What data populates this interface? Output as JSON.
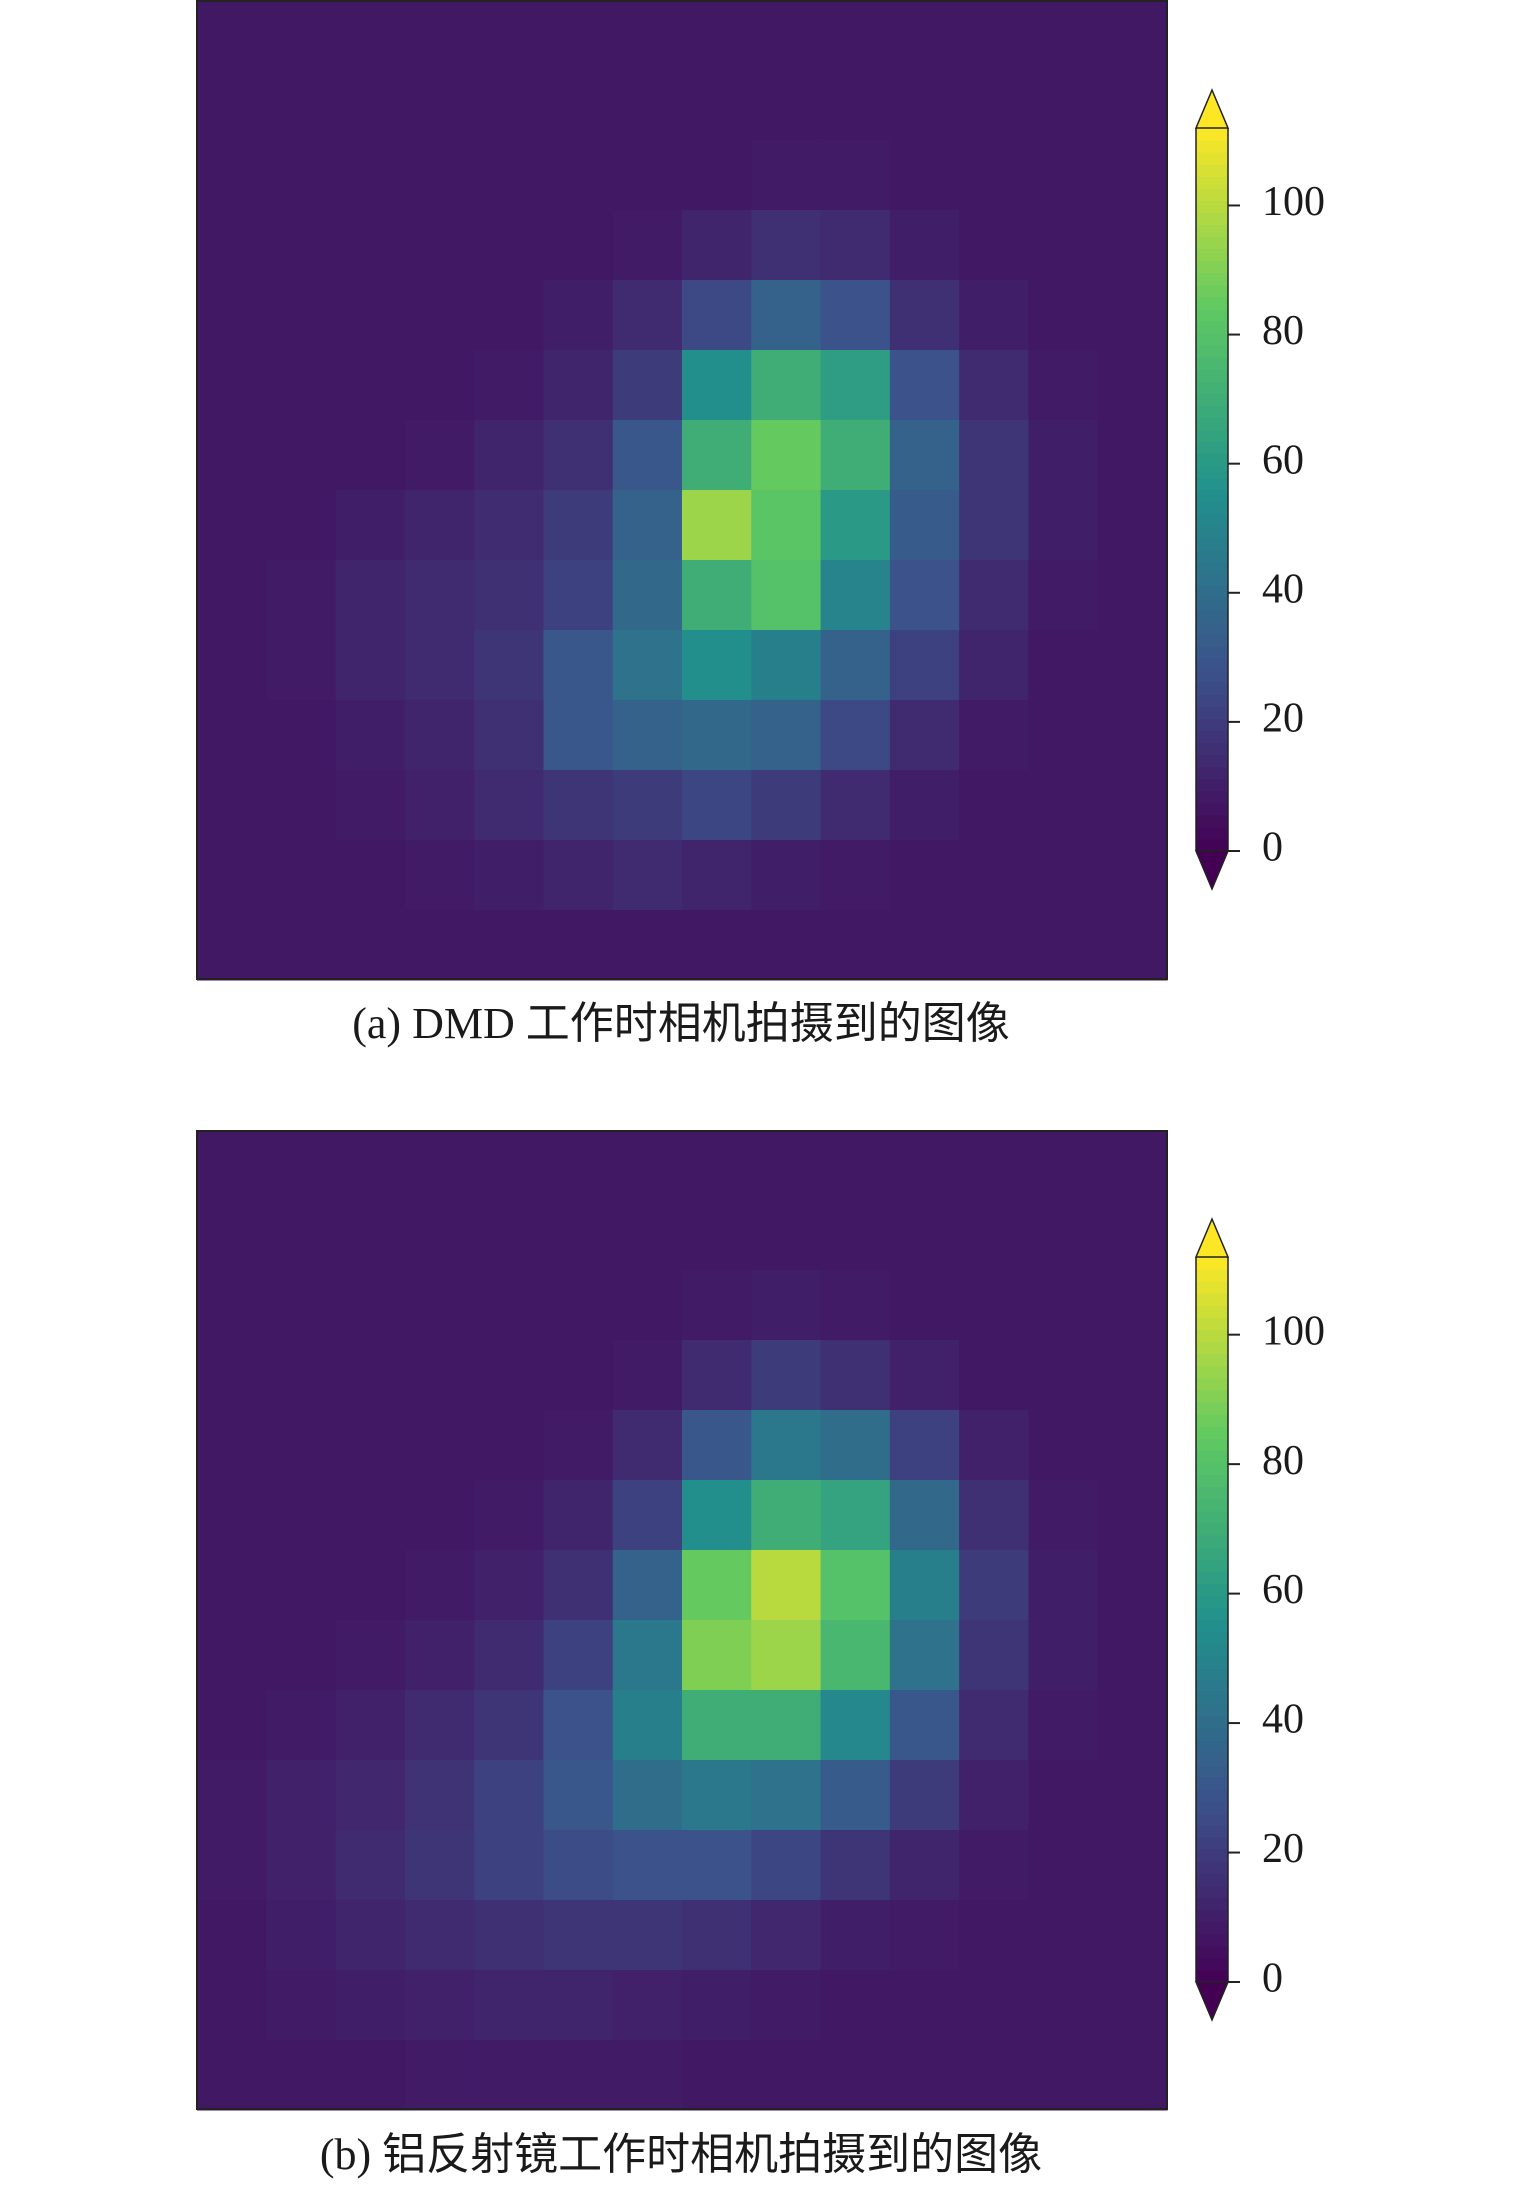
{
  "chart_data": [
    {
      "type": "heatmap",
      "caption": "(a) DMD 工作时相机拍摄到的图像",
      "colormap": "viridis",
      "colorbar_extend": "both",
      "clim": [
        0,
        112
      ],
      "cticks": [
        0,
        20,
        40,
        60,
        80,
        100
      ],
      "values": [
        [
          8,
          8,
          8,
          8,
          8,
          8,
          8,
          8,
          8,
          8,
          8,
          8,
          8,
          8
        ],
        [
          8,
          8,
          8,
          8,
          8,
          8,
          8,
          8,
          8,
          8,
          8,
          8,
          8,
          8
        ],
        [
          8,
          8,
          8,
          8,
          8,
          8,
          8,
          8,
          9,
          9,
          8,
          8,
          8,
          8
        ],
        [
          8,
          8,
          8,
          8,
          8,
          8,
          9,
          12,
          16,
          14,
          10,
          8,
          8,
          8
        ],
        [
          8,
          8,
          8,
          8,
          8,
          10,
          14,
          25,
          35,
          28,
          16,
          10,
          8,
          8
        ],
        [
          8,
          8,
          8,
          8,
          9,
          12,
          20,
          55,
          70,
          62,
          28,
          14,
          9,
          8
        ],
        [
          8,
          8,
          8,
          9,
          12,
          16,
          30,
          70,
          85,
          70,
          35,
          18,
          10,
          8
        ],
        [
          8,
          8,
          10,
          12,
          15,
          20,
          35,
          95,
          82,
          60,
          32,
          18,
          10,
          8
        ],
        [
          8,
          9,
          12,
          14,
          16,
          22,
          38,
          70,
          80,
          50,
          28,
          14,
          9,
          8
        ],
        [
          8,
          9,
          12,
          14,
          18,
          30,
          42,
          55,
          48,
          35,
          22,
          12,
          8,
          8
        ],
        [
          8,
          8,
          10,
          12,
          16,
          30,
          35,
          38,
          35,
          25,
          14,
          9,
          8,
          8
        ],
        [
          8,
          8,
          9,
          11,
          14,
          18,
          20,
          24,
          20,
          14,
          10,
          8,
          8,
          8
        ],
        [
          8,
          8,
          8,
          9,
          10,
          12,
          14,
          12,
          10,
          9,
          8,
          8,
          8,
          8
        ],
        [
          8,
          8,
          8,
          8,
          8,
          8,
          8,
          8,
          8,
          8,
          8,
          8,
          8,
          8
        ]
      ]
    },
    {
      "type": "heatmap",
      "caption": "(b) 铝反射镜工作时相机拍摄到的图像",
      "colormap": "viridis",
      "colorbar_extend": "both",
      "clim": [
        0,
        112
      ],
      "cticks": [
        0,
        20,
        40,
        60,
        80,
        100
      ],
      "values": [
        [
          8,
          8,
          8,
          8,
          8,
          8,
          8,
          8,
          8,
          8,
          8,
          8,
          8,
          8
        ],
        [
          8,
          8,
          8,
          8,
          8,
          8,
          8,
          8,
          8,
          8,
          8,
          8,
          8,
          8
        ],
        [
          8,
          8,
          8,
          8,
          8,
          8,
          8,
          9,
          10,
          9,
          8,
          8,
          8,
          8
        ],
        [
          8,
          8,
          8,
          8,
          8,
          8,
          9,
          14,
          20,
          16,
          11,
          8,
          8,
          8
        ],
        [
          8,
          8,
          8,
          8,
          8,
          9,
          14,
          30,
          45,
          40,
          22,
          11,
          8,
          8
        ],
        [
          8,
          8,
          8,
          8,
          9,
          12,
          22,
          55,
          70,
          65,
          38,
          16,
          9,
          8
        ],
        [
          8,
          8,
          8,
          9,
          11,
          16,
          35,
          85,
          100,
          80,
          48,
          20,
          10,
          8
        ],
        [
          8,
          8,
          9,
          11,
          14,
          22,
          45,
          90,
          95,
          75,
          42,
          18,
          10,
          8
        ],
        [
          8,
          9,
          11,
          14,
          18,
          28,
          48,
          70,
          70,
          52,
          30,
          14,
          9,
          8
        ],
        [
          9,
          11,
          13,
          17,
          22,
          30,
          40,
          45,
          42,
          32,
          20,
          11,
          8,
          8
        ],
        [
          9,
          11,
          14,
          18,
          22,
          26,
          28,
          28,
          24,
          18,
          12,
          9,
          8,
          8
        ],
        [
          8,
          10,
          12,
          14,
          16,
          18,
          18,
          16,
          13,
          10,
          9,
          8,
          8,
          8
        ],
        [
          8,
          9,
          10,
          11,
          12,
          12,
          11,
          10,
          9,
          8,
          8,
          8,
          8,
          8
        ],
        [
          8,
          8,
          8,
          9,
          9,
          9,
          9,
          8,
          8,
          8,
          8,
          8,
          8,
          8
        ]
      ]
    }
  ]
}
